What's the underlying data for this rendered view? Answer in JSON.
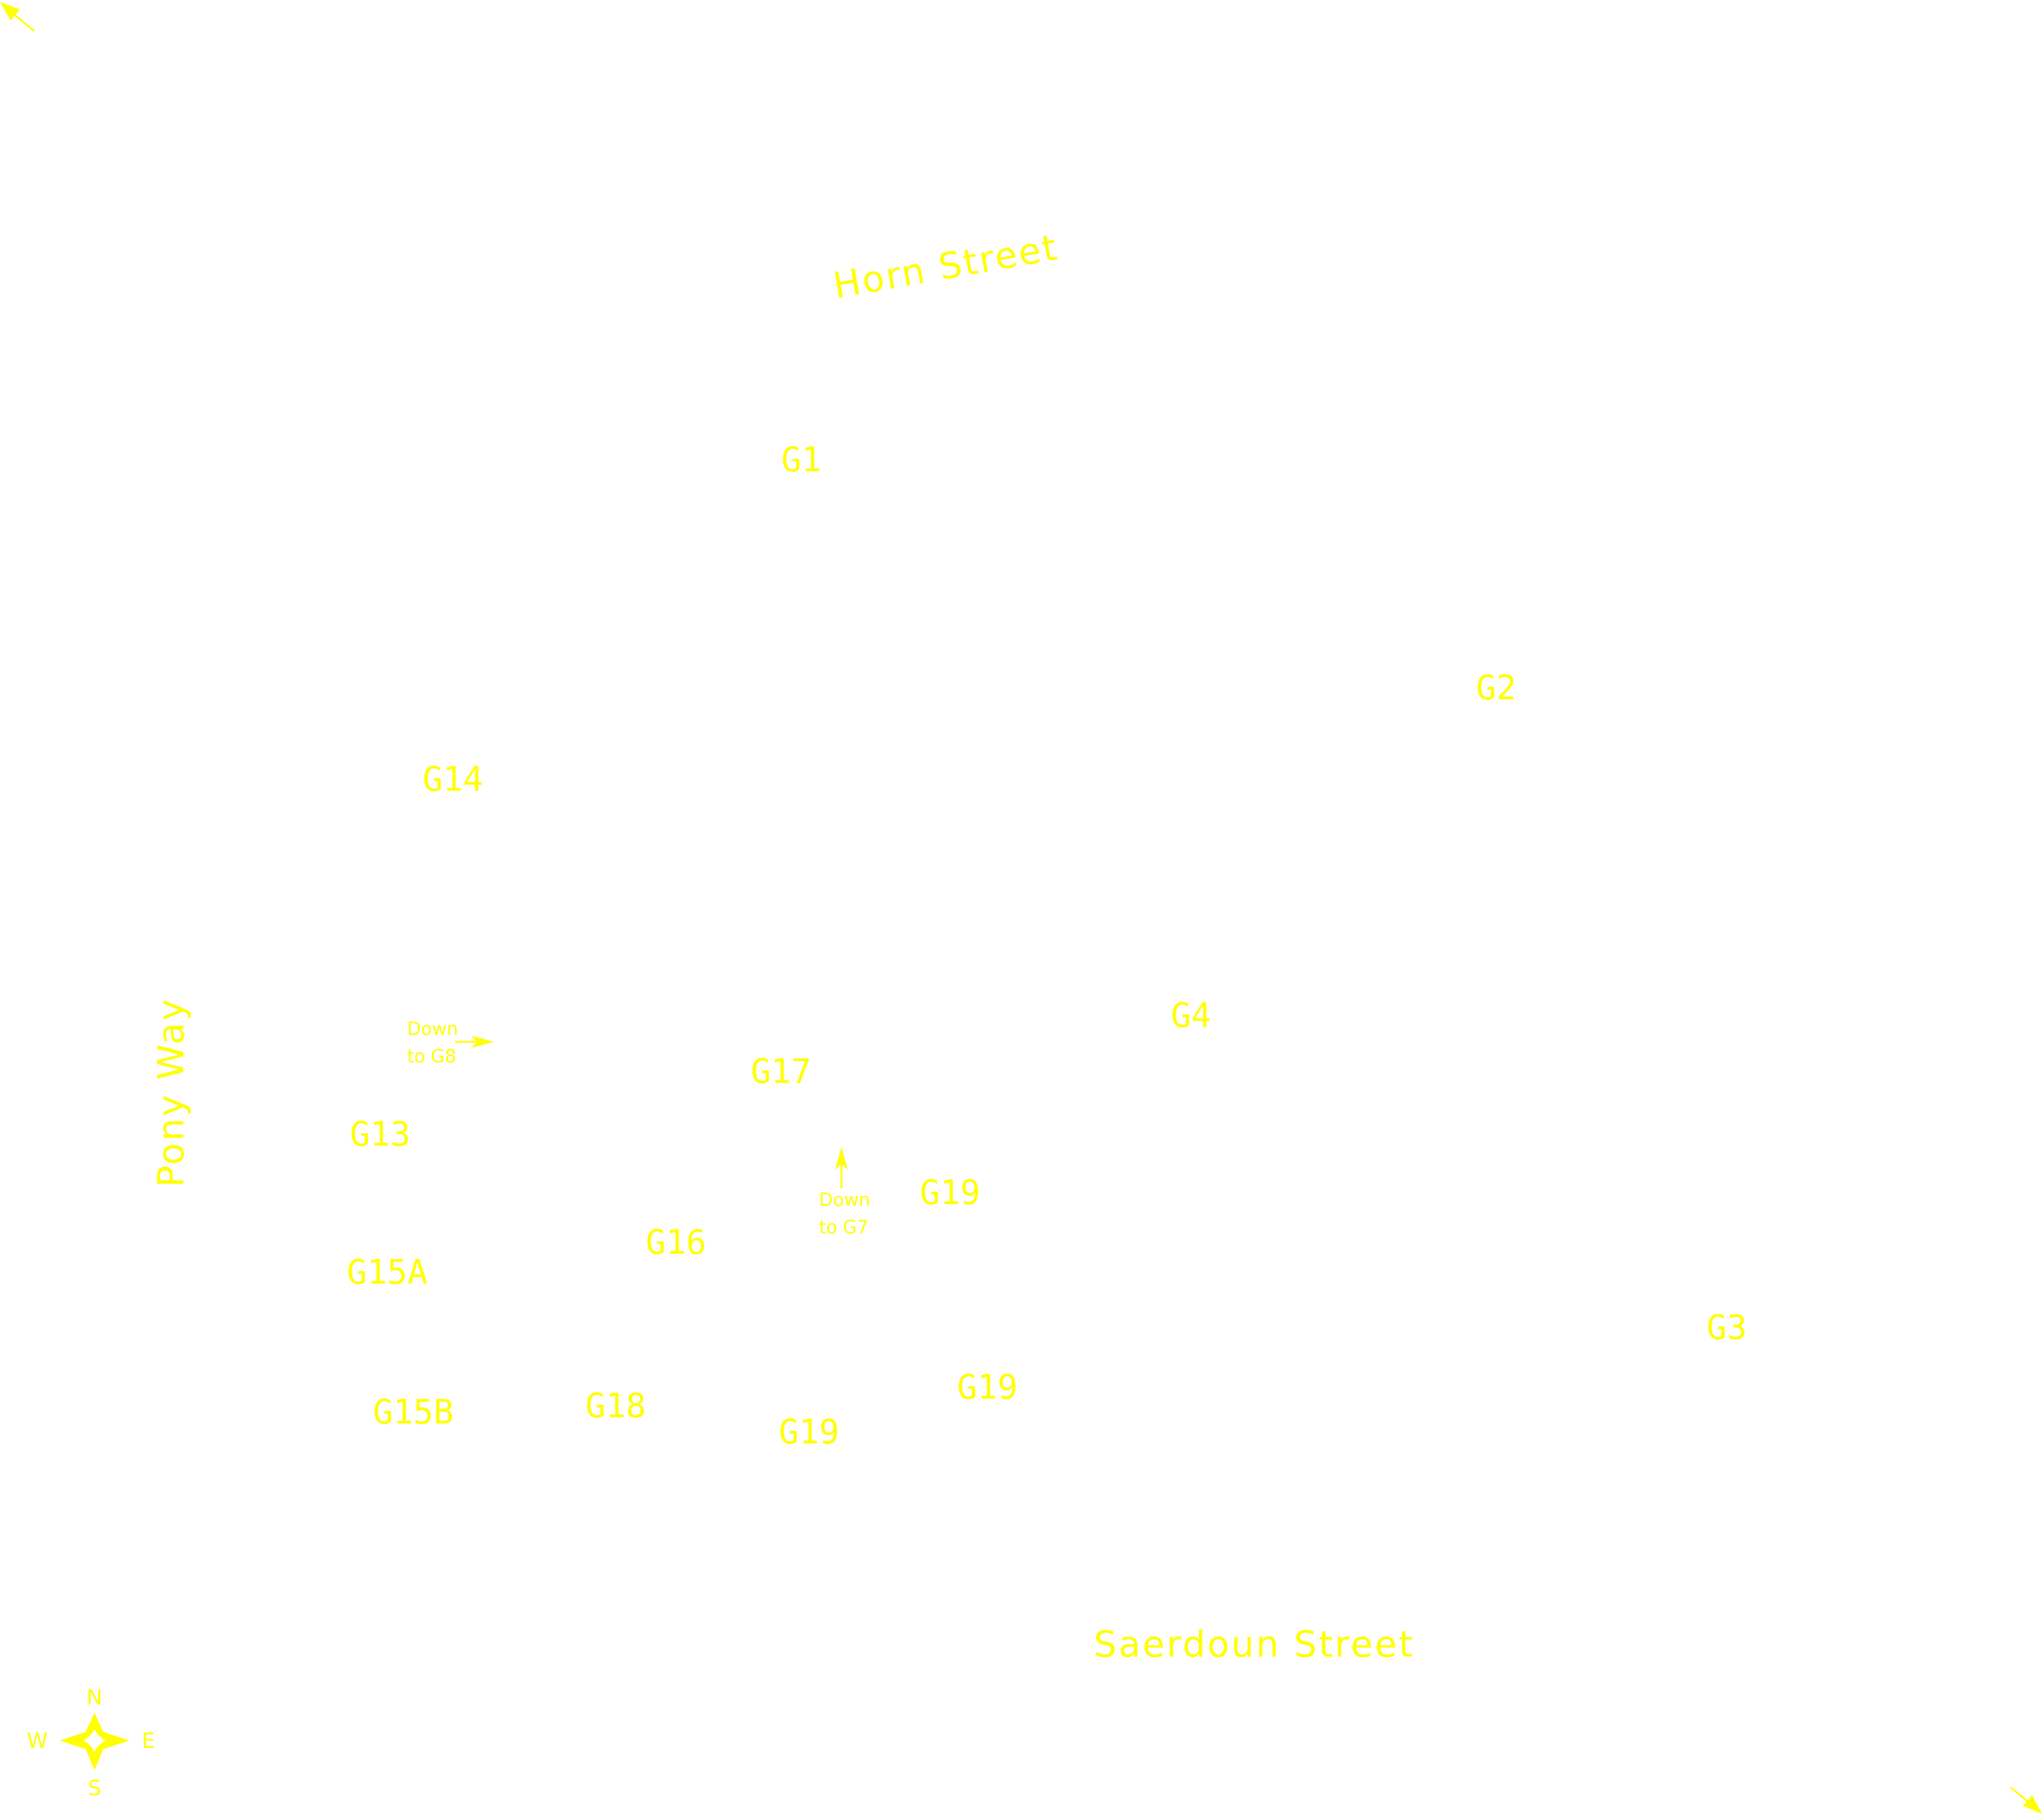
{
  "colors": {
    "background": "#ffffff",
    "label": "#ffff00"
  },
  "streets": {
    "horn": "Horn Street",
    "saerdoun": "Saerdoun Street",
    "pony": "Pony Way"
  },
  "rooms": {
    "g1": "G1",
    "g2": "G2",
    "g3": "G3",
    "g4": "G4",
    "g13": "G13",
    "g14": "G14",
    "g15a": "G15A",
    "g15b": "G15B",
    "g16": "G16",
    "g17": "G17",
    "g18": "G18",
    "g19": "G19"
  },
  "notes": {
    "g8": [
      "Down",
      "to G8"
    ],
    "g7": [
      "Down",
      "to G7"
    ]
  },
  "compass": {
    "n": "N",
    "s": "S",
    "e": "E",
    "w": "W"
  },
  "icons": {
    "compass": "compass-rose-icon",
    "corner_arrows": "arrow-icon"
  }
}
